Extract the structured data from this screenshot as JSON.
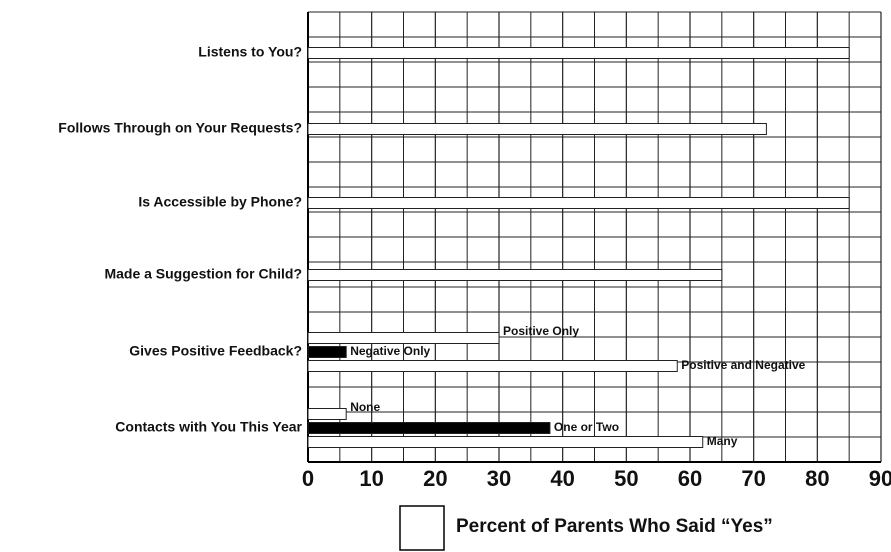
{
  "chart_data": {
    "type": "bar",
    "orientation": "horizontal",
    "categories": [
      {
        "label": "Listens to You?",
        "bars": [
          {
            "value": 85,
            "color": "#ffffff"
          }
        ]
      },
      {
        "label": "Follows Through on Your Requests?",
        "bars": [
          {
            "value": 72,
            "color": "#ffffff"
          }
        ]
      },
      {
        "label": "Is Accessible by Phone?",
        "bars": [
          {
            "value": 85,
            "color": "#ffffff"
          }
        ]
      },
      {
        "label": "Made a Suggestion for Child?",
        "bars": [
          {
            "value": 65,
            "color": "#ffffff"
          }
        ]
      },
      {
        "label": "Gives Positive Feedback?",
        "bars": [
          {
            "name": "Positive Only",
            "value": 30,
            "color": "#ffffff"
          },
          {
            "name": "Negative Only",
            "value": 6,
            "color": "#000000"
          },
          {
            "name": "Positive and Negative",
            "value": 58,
            "color": "#ffffff"
          }
        ]
      },
      {
        "label": "Contacts with You This Year",
        "bars": [
          {
            "name": "None",
            "value": 6,
            "color": "#ffffff"
          },
          {
            "name": "One or Two",
            "value": 38,
            "color": "#000000"
          },
          {
            "name": "Many",
            "value": 62,
            "color": "#ffffff"
          }
        ]
      }
    ],
    "xlim": [
      0,
      90
    ],
    "xticks": [
      0,
      10,
      20,
      30,
      40,
      50,
      60,
      70,
      80,
      90
    ],
    "grid": true,
    "legend": {
      "label": "Percent of Parents Who Said “Yes”",
      "color": "#ffffff",
      "position": "bottom"
    }
  }
}
